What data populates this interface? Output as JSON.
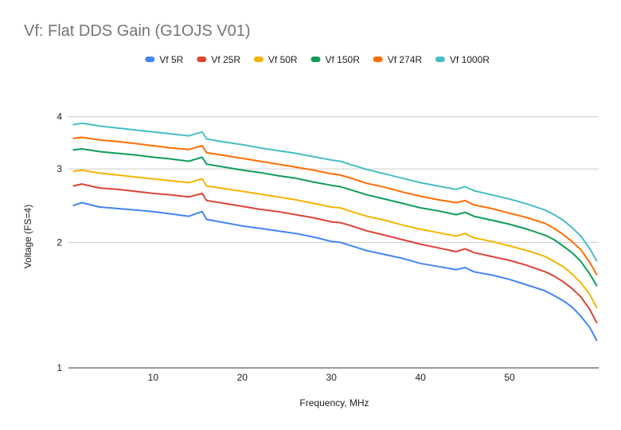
{
  "chart_data": {
    "type": "line",
    "title": "Vf: Flat DDS Gain (G1OJS V01)",
    "xlabel": "Frequency, MHz",
    "ylabel": "Voltage (FS=4)",
    "xlim": [
      0.5,
      60
    ],
    "ylim": [
      1,
      4.4
    ],
    "y_scale": "log",
    "grid": true,
    "legend": "top",
    "x_ticks": [
      "10",
      "20",
      "30",
      "40",
      "50"
    ],
    "y_ticks": [
      "1",
      "2",
      "3",
      "4"
    ],
    "x": [
      1,
      2,
      4,
      6,
      8,
      10,
      12,
      14,
      15.5,
      16,
      18,
      20,
      22,
      24,
      26,
      28,
      30,
      31,
      32,
      34,
      36,
      38,
      40,
      42,
      44,
      45,
      46,
      48,
      50,
      52,
      54,
      55,
      56,
      57,
      58,
      59,
      59.8
    ],
    "series": [
      {
        "name": "Vf 5R",
        "color": "#4285F4",
        "values": [
          2.45,
          2.49,
          2.43,
          2.41,
          2.39,
          2.37,
          2.34,
          2.31,
          2.37,
          2.27,
          2.23,
          2.19,
          2.16,
          2.13,
          2.1,
          2.06,
          2.01,
          2.0,
          1.97,
          1.91,
          1.87,
          1.83,
          1.78,
          1.75,
          1.72,
          1.74,
          1.7,
          1.67,
          1.63,
          1.58,
          1.53,
          1.49,
          1.45,
          1.4,
          1.33,
          1.25,
          1.16
        ]
      },
      {
        "name": "Vf 25R",
        "color": "#DB4437",
        "values": [
          2.73,
          2.76,
          2.7,
          2.68,
          2.65,
          2.62,
          2.6,
          2.57,
          2.62,
          2.52,
          2.48,
          2.44,
          2.4,
          2.37,
          2.33,
          2.29,
          2.24,
          2.23,
          2.2,
          2.13,
          2.08,
          2.03,
          1.98,
          1.94,
          1.9,
          1.93,
          1.89,
          1.85,
          1.81,
          1.76,
          1.7,
          1.66,
          1.61,
          1.55,
          1.48,
          1.38,
          1.28
        ]
      },
      {
        "name": "Vf 50R",
        "color": "#F4B400",
        "values": [
          2.96,
          2.98,
          2.93,
          2.9,
          2.87,
          2.84,
          2.81,
          2.78,
          2.84,
          2.73,
          2.69,
          2.65,
          2.61,
          2.57,
          2.53,
          2.48,
          2.43,
          2.42,
          2.38,
          2.31,
          2.26,
          2.2,
          2.15,
          2.11,
          2.07,
          2.1,
          2.05,
          2.01,
          1.96,
          1.91,
          1.85,
          1.8,
          1.75,
          1.68,
          1.6,
          1.5,
          1.39
        ]
      },
      {
        "name": "Vf 150R",
        "color": "#0F9D58",
        "values": [
          3.33,
          3.35,
          3.3,
          3.27,
          3.24,
          3.2,
          3.17,
          3.13,
          3.2,
          3.08,
          3.03,
          2.98,
          2.94,
          2.89,
          2.85,
          2.79,
          2.74,
          2.72,
          2.68,
          2.6,
          2.54,
          2.48,
          2.42,
          2.38,
          2.33,
          2.36,
          2.31,
          2.26,
          2.21,
          2.15,
          2.08,
          2.03,
          1.96,
          1.89,
          1.8,
          1.68,
          1.57
        ]
      },
      {
        "name": "Vf 274R",
        "color": "#FF6D01",
        "values": [
          3.55,
          3.57,
          3.52,
          3.49,
          3.45,
          3.41,
          3.37,
          3.34,
          3.41,
          3.28,
          3.23,
          3.18,
          3.13,
          3.08,
          3.03,
          2.98,
          2.92,
          2.9,
          2.86,
          2.77,
          2.71,
          2.64,
          2.58,
          2.53,
          2.49,
          2.52,
          2.46,
          2.41,
          2.35,
          2.29,
          2.22,
          2.16,
          2.09,
          2.01,
          1.92,
          1.79,
          1.67
        ]
      },
      {
        "name": "Vf 1000R",
        "color": "#46BDC6",
        "values": [
          3.83,
          3.86,
          3.8,
          3.76,
          3.72,
          3.68,
          3.64,
          3.6,
          3.68,
          3.54,
          3.48,
          3.43,
          3.37,
          3.32,
          3.27,
          3.21,
          3.15,
          3.13,
          3.08,
          2.99,
          2.92,
          2.85,
          2.78,
          2.73,
          2.68,
          2.72,
          2.66,
          2.6,
          2.54,
          2.47,
          2.39,
          2.33,
          2.26,
          2.17,
          2.07,
          1.93,
          1.8
        ]
      }
    ]
  }
}
